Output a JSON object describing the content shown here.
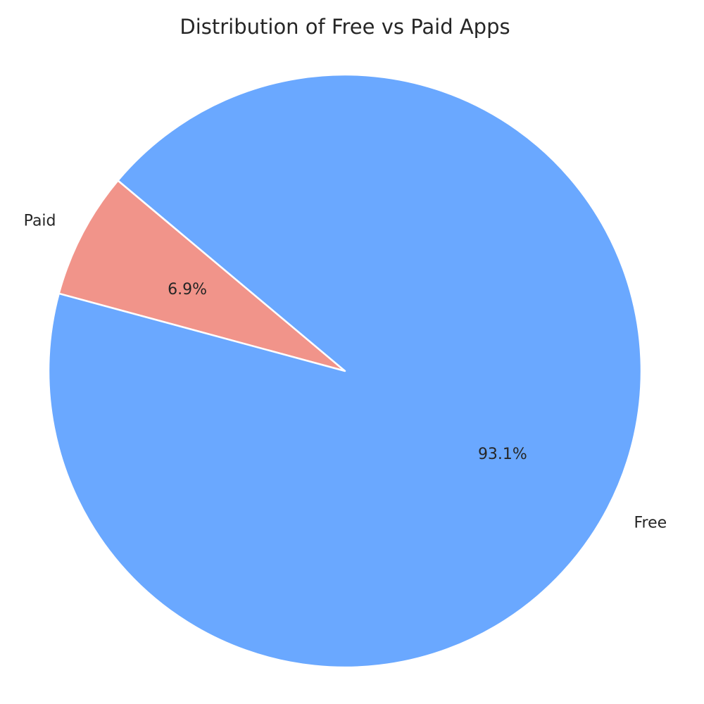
{
  "chart_data": {
    "type": "pie",
    "title": "Distribution of Free vs Paid Apps",
    "categories": [
      "Paid",
      "Free"
    ],
    "values": [
      6.9,
      93.1
    ],
    "value_labels": [
      "6.9%",
      "93.1%"
    ],
    "colors": [
      "#f1948a",
      "#6aa8ff"
    ],
    "start_angle_deg": 140,
    "edge_color": "#ffffff"
  }
}
